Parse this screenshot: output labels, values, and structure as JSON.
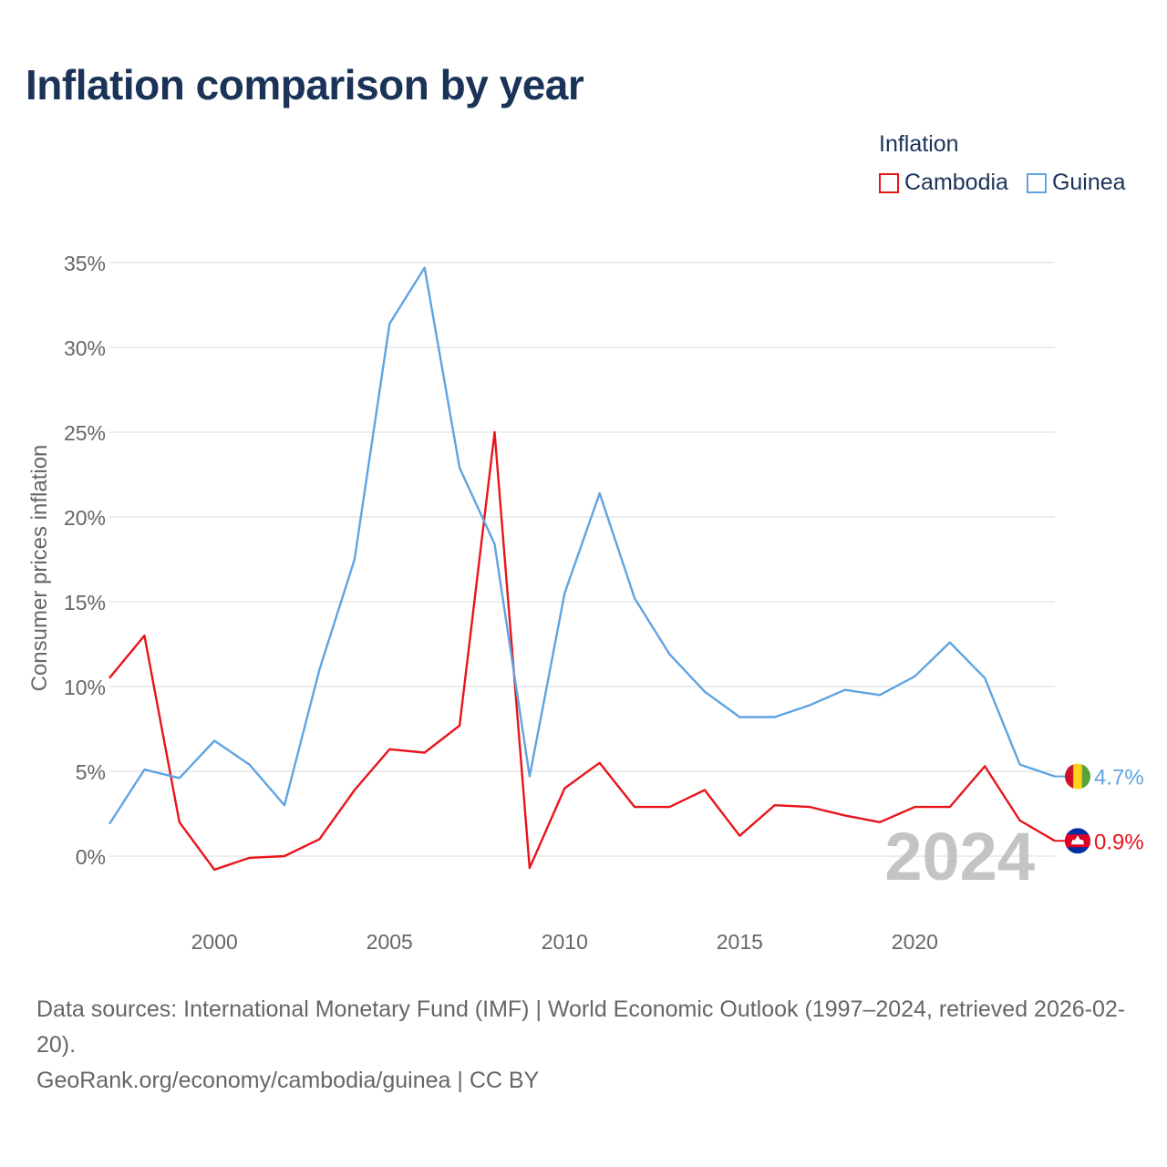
{
  "title": "Inflation comparison by year",
  "legend": {
    "title": "Inflation",
    "items": [
      {
        "label": "Cambodia",
        "color": "#e8141a"
      },
      {
        "label": "Guinea",
        "color": "#5fa4e0"
      }
    ]
  },
  "chart_data": {
    "type": "line",
    "ylabel": "Consumer prices inflation",
    "xlabel": "",
    "x": [
      1997,
      1998,
      1999,
      2000,
      2001,
      2002,
      2003,
      2004,
      2005,
      2006,
      2007,
      2008,
      2009,
      2010,
      2011,
      2012,
      2013,
      2014,
      2015,
      2016,
      2017,
      2018,
      2019,
      2020,
      2021,
      2022,
      2023,
      2024
    ],
    "xlim": [
      1997,
      2024
    ],
    "ylim": [
      -3,
      35.5
    ],
    "x_ticks": [
      2000,
      2005,
      2010,
      2015,
      2020
    ],
    "y_ticks": [
      0,
      5,
      10,
      15,
      20,
      25,
      30,
      35
    ],
    "y_tick_labels": [
      "0%",
      "5%",
      "10%",
      "15%",
      "20%",
      "25%",
      "30%",
      "35%"
    ],
    "series": [
      {
        "name": "Cambodia",
        "color": "#e8141a",
        "values": [
          10.5,
          13.0,
          2.0,
          -0.8,
          -0.1,
          0.0,
          1.0,
          3.9,
          6.3,
          6.1,
          7.7,
          25.0,
          -0.7,
          4.0,
          5.5,
          2.9,
          2.9,
          3.9,
          1.2,
          3.0,
          2.9,
          2.4,
          2.0,
          2.9,
          2.9,
          5.3,
          2.1,
          0.9
        ],
        "end_label": "0.9%",
        "flag": "cambodia-flag-icon"
      },
      {
        "name": "Guinea",
        "color": "#5fa4e0",
        "values": [
          1.9,
          5.1,
          4.6,
          6.8,
          5.4,
          3.0,
          11.0,
          17.5,
          31.4,
          34.7,
          22.9,
          18.4,
          4.7,
          15.5,
          21.4,
          15.2,
          11.9,
          9.7,
          8.2,
          8.2,
          8.9,
          9.8,
          9.5,
          10.6,
          12.6,
          10.5,
          5.4,
          4.7
        ],
        "end_label": "4.7%",
        "flag": "guinea-flag-icon"
      }
    ],
    "year_watermark": "2024"
  },
  "footer": {
    "sources": "Data sources: International Monetary Fund (IMF) | World Economic Outlook (1997–2024, retrieved 2026-02-20).",
    "attribution": "GeoRank.org/economy/cambodia/guinea | CC BY"
  }
}
